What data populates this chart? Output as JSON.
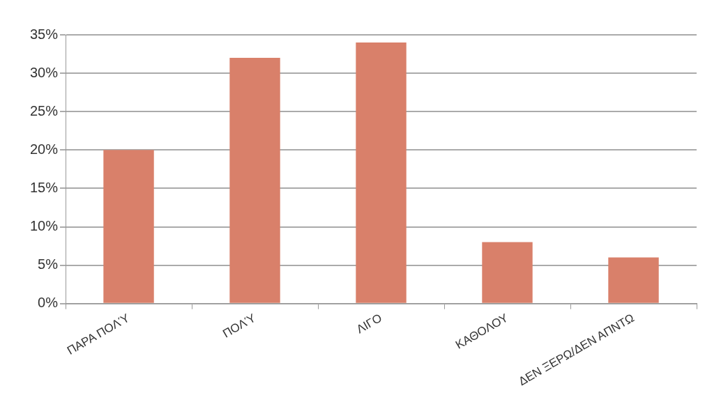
{
  "chart_data": {
    "type": "bar",
    "categories": [
      "ΠΑΡΑ ΠΟΛΎ",
      "ΠΟΛΎ",
      "ΛΙΓΟ",
      "ΚΑΘΟΛΟΥ",
      "ΔΕΝ ΞΕΡΩ/ΔΕΝ ΑΠΝΤΩ"
    ],
    "values": [
      20,
      32,
      34,
      8,
      6
    ],
    "color": "#d9806a",
    "ylim": [
      0,
      35
    ],
    "yticks": [
      {
        "value": 0,
        "label": "0%"
      },
      {
        "value": 5,
        "label": "5%"
      },
      {
        "value": 10,
        "label": "10%"
      },
      {
        "value": 15,
        "label": "15%"
      },
      {
        "value": 20,
        "label": "20%"
      },
      {
        "value": 25,
        "label": "25%"
      },
      {
        "value": 30,
        "label": "30%"
      },
      {
        "value": 35,
        "label": "35%"
      }
    ],
    "grid": "y",
    "legend": false
  }
}
